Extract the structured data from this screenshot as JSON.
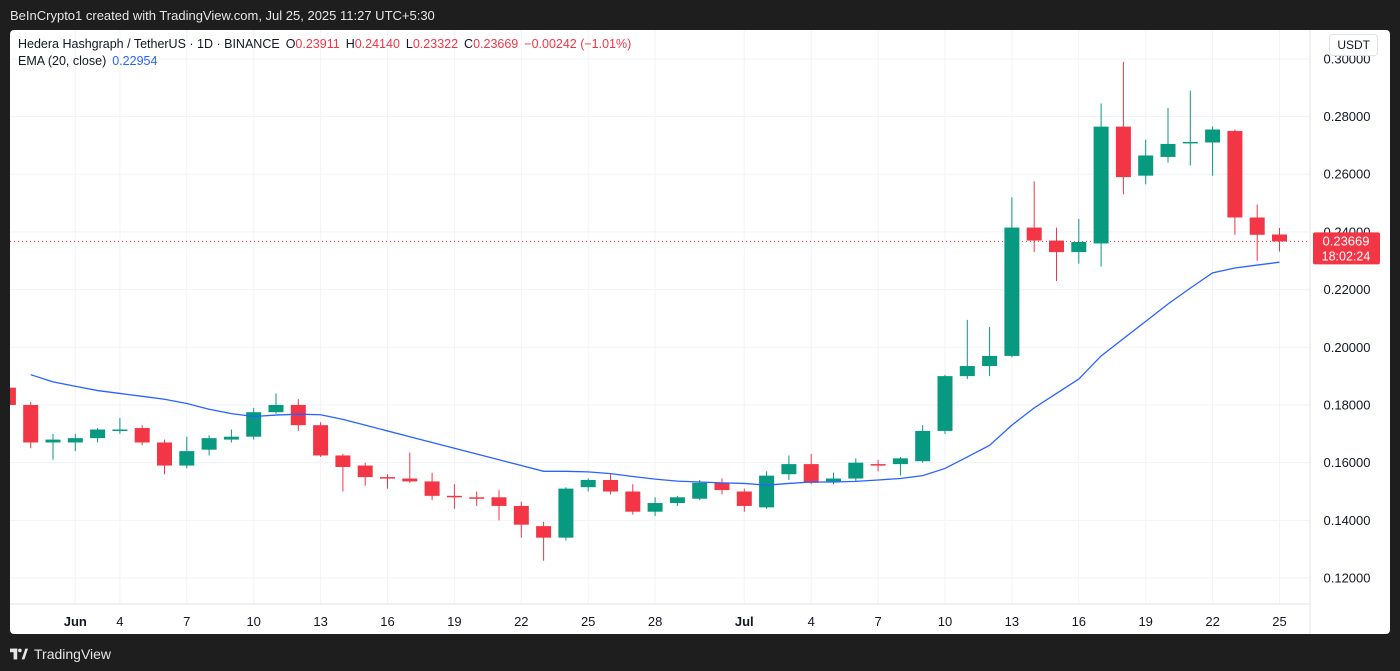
{
  "header": {
    "caption": "BeInCrypto1 created with TradingView.com, Jul 25, 2025 11:27 UTC+5:30"
  },
  "legend": {
    "symbol": "Hedera Hashgraph / TetherUS · 1D · BINANCE",
    "o_label": "O",
    "o_value": "0.23911",
    "h_label": "H",
    "h_value": "0.24140",
    "l_label": "L",
    "l_value": "0.23322",
    "c_label": "C",
    "c_value": "0.23669",
    "change": "−0.00242 (−1.01%)",
    "ema_label": "EMA (20, close)",
    "ema_value": "0.22954"
  },
  "currency": "USDT",
  "price_tag": {
    "price": "0.23669",
    "countdown": "18:02:24"
  },
  "footer": {
    "brand": "TradingView"
  },
  "colors": {
    "up": "#089981",
    "down": "#f23645",
    "ema": "#2962ff",
    "grid": "#f0f3fa",
    "axis_text": "#131722"
  },
  "chart_data": {
    "type": "candlestick",
    "y_ticks": [
      "0.30000",
      "0.28000",
      "0.26000",
      "0.24000",
      "0.22000",
      "0.20000",
      "0.18000",
      "0.16000",
      "0.14000",
      "0.12000"
    ],
    "ylim": [
      0.111,
      0.31
    ],
    "x_ticks": [
      {
        "day": 2,
        "label": "Jun"
      },
      {
        "day": 4,
        "label": "4"
      },
      {
        "day": 7,
        "label": "7"
      },
      {
        "day": 10,
        "label": "10"
      },
      {
        "day": 13,
        "label": "13"
      },
      {
        "day": 16,
        "label": "16"
      },
      {
        "day": 19,
        "label": "19"
      },
      {
        "day": 22,
        "label": "22"
      },
      {
        "day": 25,
        "label": "25"
      },
      {
        "day": 28,
        "label": "28"
      },
      {
        "day": 32,
        "label": "Jul"
      },
      {
        "day": 35,
        "label": "4"
      },
      {
        "day": 38,
        "label": "7"
      },
      {
        "day": 41,
        "label": "10"
      },
      {
        "day": 44,
        "label": "13"
      },
      {
        "day": 47,
        "label": "16"
      },
      {
        "day": 50,
        "label": "19"
      },
      {
        "day": 53,
        "label": "22"
      },
      {
        "day": 56,
        "label": "25"
      }
    ],
    "candles": [
      {
        "day": -1,
        "o": 0.186,
        "h": 0.188,
        "l": 0.178,
        "c": 0.18
      },
      {
        "day": 0,
        "o": 0.18,
        "h": 0.181,
        "l": 0.165,
        "c": 0.167
      },
      {
        "day": 1,
        "o": 0.167,
        "h": 0.17,
        "l": 0.161,
        "c": 0.168
      },
      {
        "day": 2,
        "o": 0.167,
        "h": 0.17,
        "l": 0.164,
        "c": 0.1685
      },
      {
        "day": 3,
        "o": 0.1685,
        "h": 0.172,
        "l": 0.167,
        "c": 0.1715
      },
      {
        "day": 4,
        "o": 0.171,
        "h": 0.1755,
        "l": 0.17,
        "c": 0.1715
      },
      {
        "day": 5,
        "o": 0.172,
        "h": 0.173,
        "l": 0.166,
        "c": 0.167
      },
      {
        "day": 6,
        "o": 0.167,
        "h": 0.168,
        "l": 0.156,
        "c": 0.159
      },
      {
        "day": 7,
        "o": 0.159,
        "h": 0.169,
        "l": 0.158,
        "c": 0.164
      },
      {
        "day": 8,
        "o": 0.1645,
        "h": 0.1695,
        "l": 0.1625,
        "c": 0.1685
      },
      {
        "day": 9,
        "o": 0.168,
        "h": 0.1715,
        "l": 0.167,
        "c": 0.169
      },
      {
        "day": 10,
        "o": 0.169,
        "h": 0.179,
        "l": 0.168,
        "c": 0.1775
      },
      {
        "day": 11,
        "o": 0.1775,
        "h": 0.184,
        "l": 0.177,
        "c": 0.18
      },
      {
        "day": 12,
        "o": 0.18,
        "h": 0.182,
        "l": 0.171,
        "c": 0.173
      },
      {
        "day": 13,
        "o": 0.173,
        "h": 0.174,
        "l": 0.162,
        "c": 0.1625
      },
      {
        "day": 14,
        "o": 0.1625,
        "h": 0.163,
        "l": 0.15,
        "c": 0.1585
      },
      {
        "day": 15,
        "o": 0.159,
        "h": 0.16,
        "l": 0.152,
        "c": 0.155
      },
      {
        "day": 16,
        "o": 0.155,
        "h": 0.156,
        "l": 0.151,
        "c": 0.1545
      },
      {
        "day": 17,
        "o": 0.1545,
        "h": 0.1635,
        "l": 0.153,
        "c": 0.1535
      },
      {
        "day": 18,
        "o": 0.1535,
        "h": 0.1565,
        "l": 0.147,
        "c": 0.1485
      },
      {
        "day": 19,
        "o": 0.1485,
        "h": 0.1525,
        "l": 0.144,
        "c": 0.148
      },
      {
        "day": 20,
        "o": 0.148,
        "h": 0.15,
        "l": 0.145,
        "c": 0.1475
      },
      {
        "day": 21,
        "o": 0.148,
        "h": 0.1505,
        "l": 0.14,
        "c": 0.145
      },
      {
        "day": 22,
        "o": 0.145,
        "h": 0.1465,
        "l": 0.134,
        "c": 0.1385
      },
      {
        "day": 23,
        "o": 0.138,
        "h": 0.1395,
        "l": 0.126,
        "c": 0.134
      },
      {
        "day": 24,
        "o": 0.134,
        "h": 0.1515,
        "l": 0.133,
        "c": 0.151
      },
      {
        "day": 25,
        "o": 0.1515,
        "h": 0.1545,
        "l": 0.15,
        "c": 0.154
      },
      {
        "day": 26,
        "o": 0.154,
        "h": 0.156,
        "l": 0.149,
        "c": 0.15
      },
      {
        "day": 27,
        "o": 0.15,
        "h": 0.1525,
        "l": 0.142,
        "c": 0.143
      },
      {
        "day": 28,
        "o": 0.143,
        "h": 0.148,
        "l": 0.1415,
        "c": 0.146
      },
      {
        "day": 29,
        "o": 0.146,
        "h": 0.1485,
        "l": 0.145,
        "c": 0.148
      },
      {
        "day": 30,
        "o": 0.1475,
        "h": 0.154,
        "l": 0.147,
        "c": 0.153
      },
      {
        "day": 31,
        "o": 0.153,
        "h": 0.1545,
        "l": 0.149,
        "c": 0.1505
      },
      {
        "day": 32,
        "o": 0.15,
        "h": 0.151,
        "l": 0.143,
        "c": 0.145
      },
      {
        "day": 33,
        "o": 0.1445,
        "h": 0.157,
        "l": 0.144,
        "c": 0.1555
      },
      {
        "day": 34,
        "o": 0.156,
        "h": 0.1625,
        "l": 0.154,
        "c": 0.1595
      },
      {
        "day": 35,
        "o": 0.1595,
        "h": 0.163,
        "l": 0.1525,
        "c": 0.153
      },
      {
        "day": 36,
        "o": 0.1535,
        "h": 0.1565,
        "l": 0.1525,
        "c": 0.1545
      },
      {
        "day": 37,
        "o": 0.1545,
        "h": 0.1615,
        "l": 0.1535,
        "c": 0.16
      },
      {
        "day": 38,
        "o": 0.1595,
        "h": 0.161,
        "l": 0.157,
        "c": 0.159
      },
      {
        "day": 39,
        "o": 0.1595,
        "h": 0.162,
        "l": 0.1555,
        "c": 0.1615
      },
      {
        "day": 40,
        "o": 0.1605,
        "h": 0.173,
        "l": 0.16,
        "c": 0.171
      },
      {
        "day": 41,
        "o": 0.171,
        "h": 0.1905,
        "l": 0.17,
        "c": 0.19
      },
      {
        "day": 42,
        "o": 0.19,
        "h": 0.2095,
        "l": 0.189,
        "c": 0.1935
      },
      {
        "day": 43,
        "o": 0.1935,
        "h": 0.207,
        "l": 0.19,
        "c": 0.197
      },
      {
        "day": 44,
        "o": 0.197,
        "h": 0.252,
        "l": 0.1965,
        "c": 0.2415
      },
      {
        "day": 45,
        "o": 0.2415,
        "h": 0.2575,
        "l": 0.233,
        "c": 0.237
      },
      {
        "day": 46,
        "o": 0.237,
        "h": 0.2415,
        "l": 0.223,
        "c": 0.233
      },
      {
        "day": 47,
        "o": 0.233,
        "h": 0.2445,
        "l": 0.229,
        "c": 0.2365
      },
      {
        "day": 48,
        "o": 0.236,
        "h": 0.2845,
        "l": 0.228,
        "c": 0.2765
      },
      {
        "day": 49,
        "o": 0.2765,
        "h": 0.299,
        "l": 0.253,
        "c": 0.259
      },
      {
        "day": 50,
        "o": 0.2595,
        "h": 0.272,
        "l": 0.2565,
        "c": 0.2665
      },
      {
        "day": 51,
        "o": 0.266,
        "h": 0.283,
        "l": 0.264,
        "c": 0.2705
      },
      {
        "day": 52,
        "o": 0.271,
        "h": 0.289,
        "l": 0.263,
        "c": 0.2712
      },
      {
        "day": 53,
        "o": 0.271,
        "h": 0.2765,
        "l": 0.2595,
        "c": 0.2755
      },
      {
        "day": 54,
        "o": 0.275,
        "h": 0.2755,
        "l": 0.239,
        "c": 0.245
      },
      {
        "day": 55,
        "o": 0.245,
        "h": 0.2495,
        "l": 0.23,
        "c": 0.239
      },
      {
        "day": 56,
        "o": 0.2391,
        "h": 0.2414,
        "l": 0.2332,
        "c": 0.2367
      }
    ],
    "ema": [
      0.1905,
      0.188,
      0.1865,
      0.185,
      0.184,
      0.183,
      0.182,
      0.1805,
      0.1785,
      0.177,
      0.176,
      0.1765,
      0.1768,
      0.1766,
      0.175,
      0.173,
      0.171,
      0.169,
      0.167,
      0.165,
      0.163,
      0.161,
      0.159,
      0.157,
      0.157,
      0.1568,
      0.1562,
      0.1552,
      0.1543,
      0.1536,
      0.1533,
      0.153,
      0.1528,
      0.1522,
      0.1528,
      0.1533,
      0.1533,
      0.1535,
      0.154,
      0.1545,
      0.1555,
      0.158,
      0.162,
      0.166,
      0.173,
      0.179,
      0.184,
      0.189,
      0.197,
      0.203,
      0.209,
      0.215,
      0.2205,
      0.2258,
      0.2275,
      0.2285,
      0.2295
    ]
  }
}
